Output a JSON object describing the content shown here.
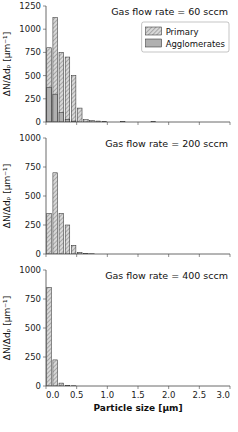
{
  "chart_data": [
    {
      "type": "bar",
      "title": "Gas flow rate = 60 sccm",
      "x": [
        0.05,
        0.15,
        0.25,
        0.35,
        0.45,
        0.55,
        0.65,
        0.75,
        0.85,
        0.95,
        1.25,
        1.75
      ],
      "series": [
        {
          "name": "Primary",
          "color": "#d8d8d8",
          "values": [
            800,
            1125,
            750,
            700,
            500,
            150,
            25,
            15,
            10,
            8,
            5,
            3
          ]
        },
        {
          "name": "Agglomerates",
          "color": "#b0b0b0",
          "values": [
            375,
            300,
            100,
            30,
            10,
            0,
            0,
            0,
            0,
            0,
            0,
            0
          ]
        }
      ],
      "xlim": [
        0.0,
        3.0
      ],
      "xticks": [
        0,
        0.5,
        1,
        1.5,
        2,
        2.5,
        3
      ],
      "ylim": [
        0,
        1250
      ],
      "yticks": [
        0,
        250,
        500,
        750,
        1000,
        1250
      ],
      "y_label": "ΔN/Δdₚ [μm⁻¹]",
      "legend": "upper right",
      "tick_labels": "y"
    },
    {
      "type": "bar",
      "title": "Gas flow rate = 200 sccm",
      "x": [
        0.05,
        0.15,
        0.25,
        0.35,
        0.45,
        0.55,
        0.65,
        0.75,
        0.85,
        0.95,
        1.25,
        1.75
      ],
      "series": [
        {
          "name": "Primary",
          "color": "#d8d8d8",
          "values": [
            350,
            700,
            350,
            250,
            75,
            15,
            5,
            2,
            0,
            0,
            0,
            0
          ]
        }
      ],
      "xlim": [
        0.0,
        3.0
      ],
      "xticks": [
        0,
        0.5,
        1,
        1.5,
        2,
        2.5,
        3
      ],
      "ylim": [
        0,
        1000
      ],
      "yticks": [
        0,
        250,
        500,
        750,
        1000
      ],
      "y_label": "ΔN/Δdₚ [μm⁻¹]",
      "tick_labels": "y"
    },
    {
      "type": "bar",
      "title": "Gas flow rate = 400 sccm",
      "x": [
        0.05,
        0.15,
        0.25,
        0.35,
        0.45,
        0.55,
        0.65,
        0.75,
        0.85,
        0.95,
        1.25,
        1.75
      ],
      "series": [
        {
          "name": "Primary",
          "color": "#d8d8d8",
          "values": [
            850,
            225,
            25,
            5,
            2,
            0,
            0,
            0,
            0,
            0,
            0,
            0
          ]
        }
      ],
      "xlim": [
        0.0,
        3.0
      ],
      "xticks": [
        {
          "value": 0.0,
          "label": "0.0"
        },
        {
          "value": 0.5,
          "label": "0.5"
        },
        {
          "value": 1.0,
          "label": "1.0"
        },
        {
          "value": 1.5,
          "label": "1.5"
        },
        {
          "value": 2.0,
          "label": "2.0"
        },
        {
          "value": 2.5,
          "label": "2.5"
        },
        {
          "value": 3.0,
          "label": "3.0"
        }
      ],
      "ylim": [
        0,
        1000
      ],
      "yticks": [
        0,
        250,
        500,
        750,
        1000
      ],
      "y_label": "ΔN/Δdₚ [μm⁻¹]",
      "x_label": "Particle size [μm]"
    }
  ]
}
